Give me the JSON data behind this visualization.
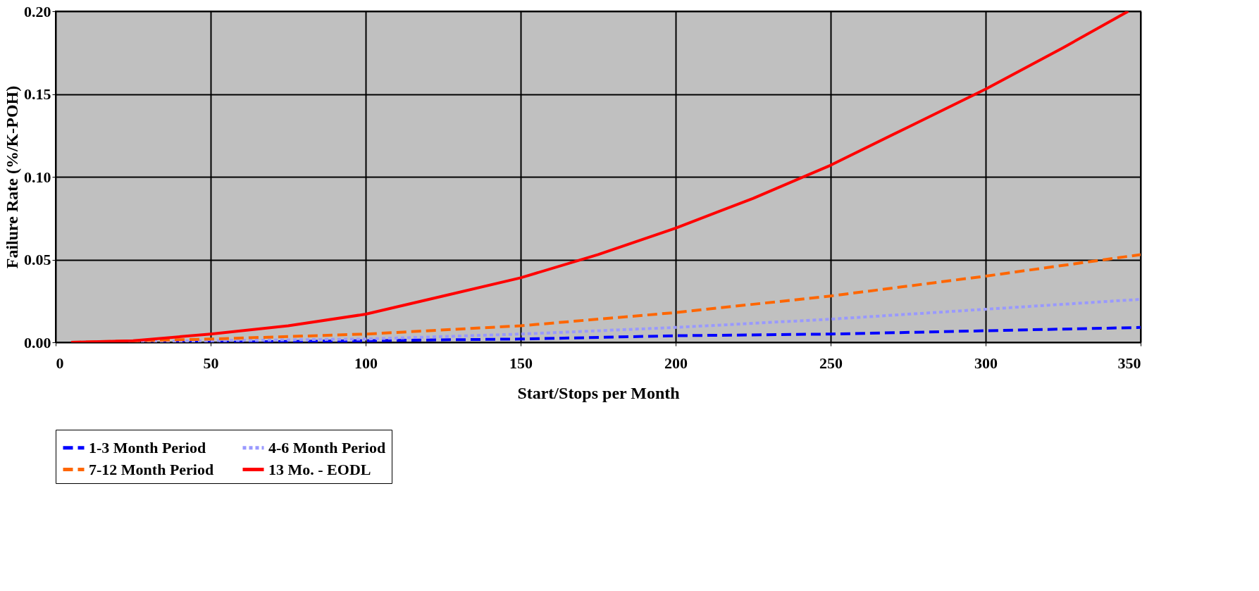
{
  "chart_data": {
    "type": "line",
    "xlabel": "Start/Stops per Month",
    "ylabel": "Failure Rate (%/K-POH)",
    "xlim": [
      0,
      350
    ],
    "ylim": [
      0,
      0.2
    ],
    "xticks": [
      0,
      50,
      100,
      150,
      200,
      250,
      300,
      350
    ],
    "yticks": [
      {
        "value": 0,
        "label": "0.00"
      },
      {
        "value": 0.05,
        "label": "0.05"
      },
      {
        "value": 0.1,
        "label": "0.10"
      },
      {
        "value": 0.15,
        "label": "0.15"
      },
      {
        "value": 0.2,
        "label": "0.20"
      }
    ],
    "grid": true,
    "legend": "bottom",
    "marker": "none",
    "series": [
      {
        "name": "1-3 Month Period",
        "color": "#0000ff",
        "line_style": "dashed",
        "x": [
          5,
          50,
          100,
          150,
          200,
          250,
          300,
          350
        ],
        "values": [
          0,
          0,
          0.001,
          0.002,
          0.004,
          0.005,
          0.007,
          0.009
        ]
      },
      {
        "name": "4-6 Month Period",
        "color": "#9999ff",
        "line_style": "dotted",
        "x": [
          5,
          50,
          100,
          150,
          200,
          250,
          300,
          350
        ],
        "values": [
          0,
          0.001,
          0.002,
          0.005,
          0.009,
          0.014,
          0.02,
          0.026
        ]
      },
      {
        "name": "7-12 Month Period",
        "color": "#ff6600",
        "line_style": "dashed",
        "x": [
          5,
          50,
          100,
          150,
          200,
          250,
          300,
          350
        ],
        "values": [
          0,
          0.002,
          0.005,
          0.01,
          0.018,
          0.028,
          0.04,
          0.053
        ]
      },
      {
        "name": "13 Mo. - EODL",
        "color": "#ff0000",
        "line_style": "solid",
        "x": [
          5,
          25,
          50,
          75,
          100,
          125,
          150,
          175,
          200,
          225,
          250,
          275,
          300,
          325,
          346
        ],
        "values": [
          0,
          0.001,
          0.005,
          0.01,
          0.017,
          0.028,
          0.039,
          0.053,
          0.069,
          0.087,
          0.107,
          0.13,
          0.153,
          0.178,
          0.2
        ]
      }
    ]
  }
}
